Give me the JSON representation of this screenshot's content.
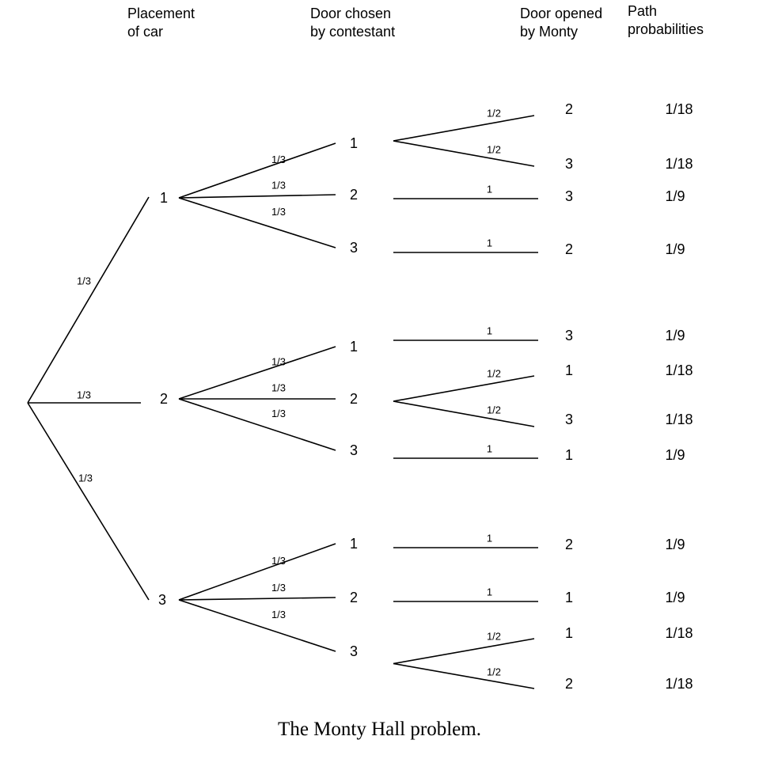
{
  "headers": {
    "placement": [
      "Placement",
      "of car"
    ],
    "chosen": [
      "Door chosen",
      "by contestant"
    ],
    "opened": [
      "Door opened",
      "by Monty"
    ],
    "path": [
      "Path",
      "probabilities"
    ]
  },
  "root_edges": [
    "1/3",
    "1/3",
    "1/3"
  ],
  "branches": [
    {
      "car": "1",
      "edges": [
        "1/3",
        "1/3",
        "1/3"
      ],
      "choices": [
        {
          "door": "1",
          "opens": [
            {
              "p": "1/2",
              "door": "2",
              "path": "1/18"
            },
            {
              "p": "1/2",
              "door": "3",
              "path": "1/18"
            }
          ]
        },
        {
          "door": "2",
          "opens": [
            {
              "p": "1",
              "door": "3",
              "path": "1/9"
            }
          ]
        },
        {
          "door": "3",
          "opens": [
            {
              "p": "1",
              "door": "2",
              "path": "1/9"
            }
          ]
        }
      ]
    },
    {
      "car": "2",
      "edges": [
        "1/3",
        "1/3",
        "1/3"
      ],
      "choices": [
        {
          "door": "1",
          "opens": [
            {
              "p": "1",
              "door": "3",
              "path": "1/9"
            }
          ]
        },
        {
          "door": "2",
          "opens": [
            {
              "p": "1/2",
              "door": "1",
              "path": "1/18"
            },
            {
              "p": "1/2",
              "door": "3",
              "path": "1/18"
            }
          ]
        },
        {
          "door": "3",
          "opens": [
            {
              "p": "1",
              "door": "1",
              "path": "1/9"
            }
          ]
        }
      ]
    },
    {
      "car": "3",
      "edges": [
        "1/3",
        "1/3",
        "1/3"
      ],
      "choices": [
        {
          "door": "1",
          "opens": [
            {
              "p": "1",
              "door": "2",
              "path": "1/9"
            }
          ]
        },
        {
          "door": "2",
          "opens": [
            {
              "p": "1",
              "door": "1",
              "path": "1/9"
            }
          ]
        },
        {
          "door": "3",
          "opens": [
            {
              "p": "1/2",
              "door": "1",
              "path": "1/18"
            },
            {
              "p": "1/2",
              "door": "2",
              "path": "1/18"
            }
          ]
        }
      ]
    }
  ],
  "caption": "The Monty Hall problem."
}
